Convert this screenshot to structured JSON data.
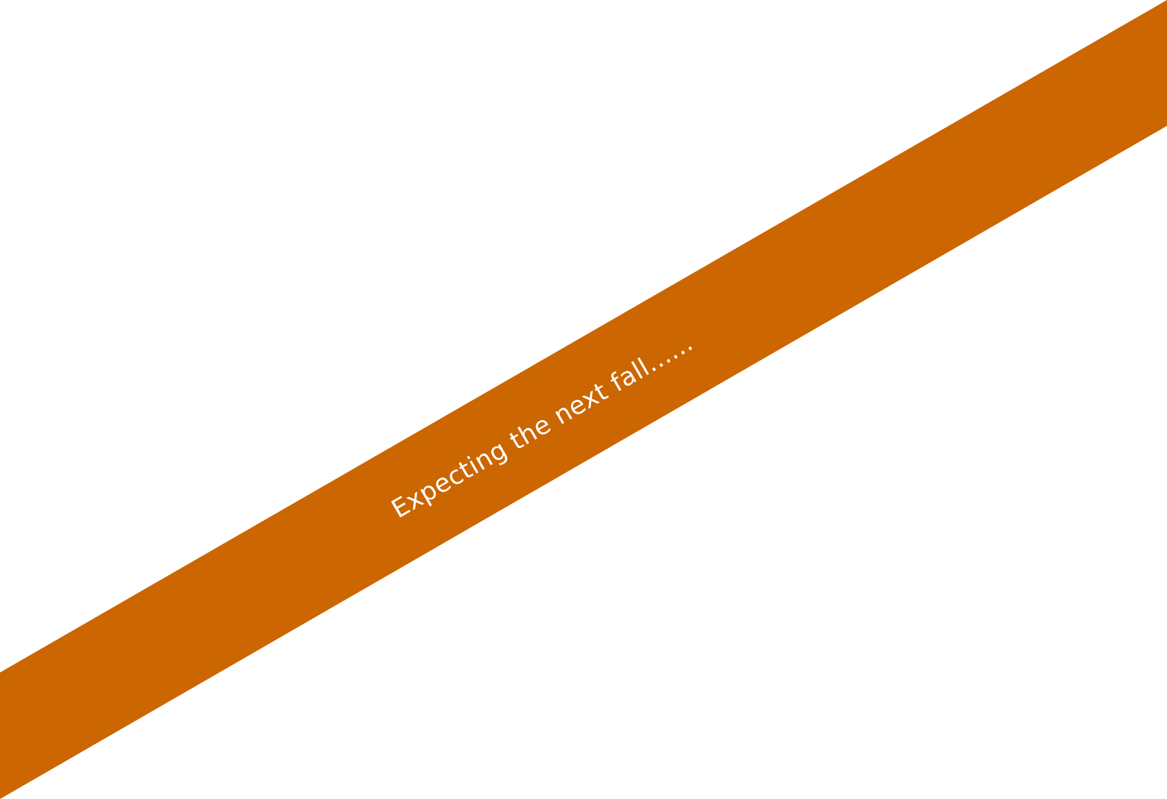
{
  "banner": {
    "text": "Expecting the next fall......",
    "color": "#CC6600",
    "text_color": "#FFFFFF"
  }
}
